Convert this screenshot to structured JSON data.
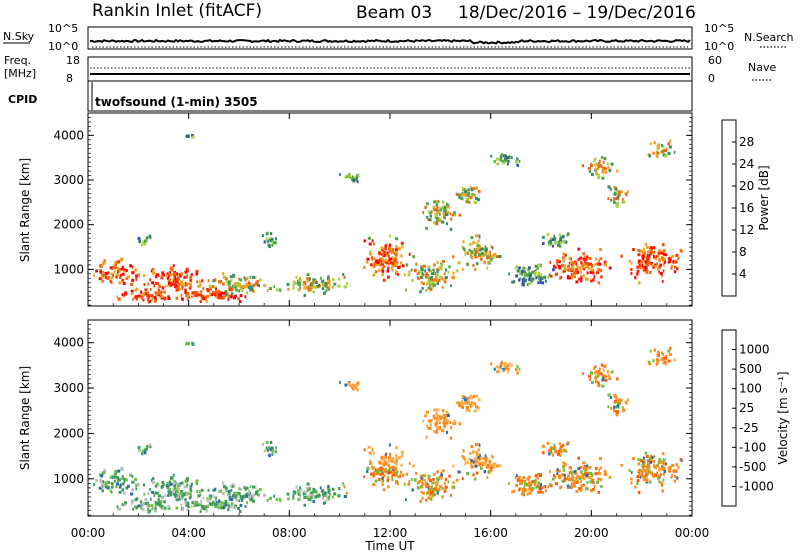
{
  "header": {
    "station": "Rankin Inlet (fitACF)",
    "beam": "Beam 03",
    "date_range": "18/Dec/2016 – 19/Dec/2016"
  },
  "nsky_panel": {
    "left_label": "N.Sky",
    "right_label": "N.Search",
    "left_ticks": [
      "10^5",
      "10^0"
    ],
    "right_ticks": [
      "10^5",
      "10^0"
    ]
  },
  "freq_panel": {
    "left_label_1": "Freq.",
    "left_label_2": "[MHz]",
    "left_ticks": [
      "18",
      "8"
    ],
    "right_ticks": [
      "60",
      "0"
    ],
    "right_label": "Nave"
  },
  "cpid_panel": {
    "label": "CPID",
    "text": "twofsound (1-min) 3505"
  },
  "axes": {
    "ylabel": "Slant Range [km]",
    "xlabel": "Time UT",
    "x_ticks": [
      "00:00",
      "04:00",
      "08:00",
      "12:00",
      "16:00",
      "20:00",
      "00:00"
    ],
    "y_ticks": [
      "4000",
      "3000",
      "2000",
      "1000"
    ]
  },
  "colors": {
    "power_scale": [
      "#0000ff",
      "#2e4fb0",
      "#3a8a62",
      "#56a24a",
      "#a6d23c",
      "#f0a020",
      "#f06a10",
      "#ff2800",
      "#ff0000"
    ],
    "velocity_scale": [
      "#ff0000",
      "#ff5a00",
      "#ff8c1a",
      "#ffb050",
      "#bdbdbd",
      "#6ac040",
      "#3a9a5a",
      "#2e6aa8",
      "#1a2ecc"
    ]
  },
  "chart_data": [
    {
      "type": "heatmap",
      "panel": "power",
      "xlabel": "Time UT",
      "ylabel": "Slant Range [km]",
      "xlim": [
        0,
        24
      ],
      "ylim": [
        180,
        4500
      ],
      "colorbar": {
        "label": "Power [dB]",
        "ticks": [
          "28",
          "24",
          "20",
          "16",
          "12",
          "8",
          "4"
        ],
        "range": [
          0,
          32
        ]
      }
    },
    {
      "type": "heatmap",
      "panel": "velocity",
      "xlabel": "Time UT",
      "ylabel": "Slant Range [km]",
      "xlim": [
        0,
        24
      ],
      "ylim": [
        180,
        4500
      ],
      "colorbar": {
        "label": "Velocity [m s⁻¹]",
        "ticks": [
          "1000",
          "500",
          "100",
          "25",
          "-25",
          "-100",
          "-500",
          "-1000"
        ],
        "range": [
          -1000,
          1000
        ]
      }
    }
  ]
}
